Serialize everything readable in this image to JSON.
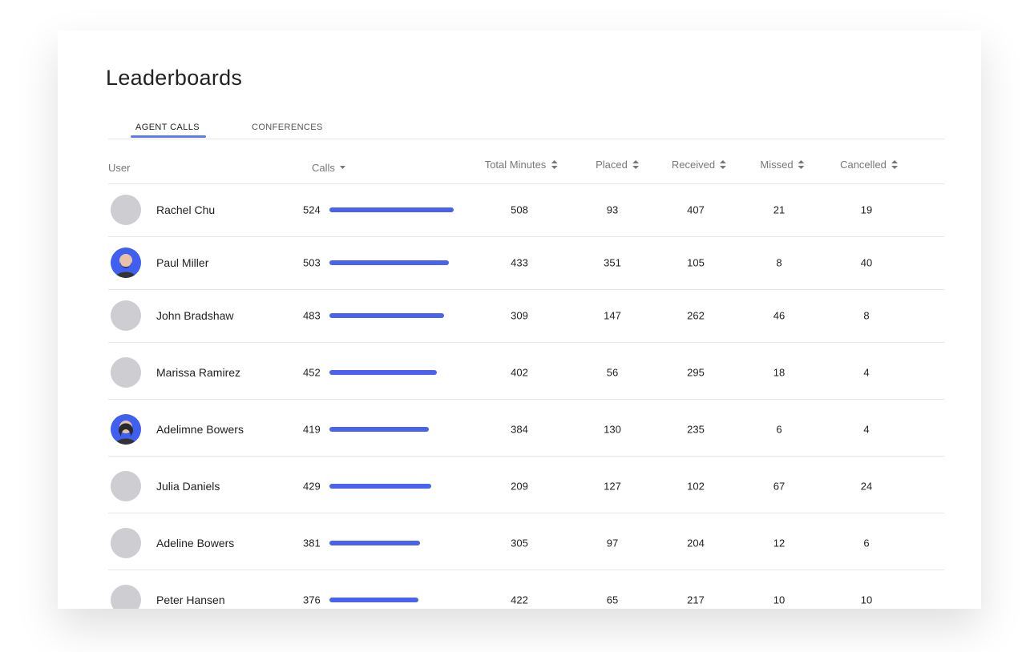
{
  "title": "Leaderboards",
  "tabs": [
    "AGENT CALLS",
    "CONFERENCES"
  ],
  "table": {
    "columns": [
      "User",
      "Calls",
      "Total Minutes",
      "Placed",
      "Received",
      "Missed",
      "Cancelled"
    ],
    "rows": [
      [
        "Rachel Chu",
        524,
        508,
        93,
        407,
        21,
        19
      ],
      [
        "Paul Miller",
        503,
        433,
        351,
        105,
        8,
        40
      ],
      [
        "John Bradshaw",
        483,
        309,
        147,
        262,
        46,
        8
      ],
      [
        "Marissa Ramirez",
        452,
        402,
        56,
        295,
        18,
        4
      ],
      [
        "Adelimne Bowers",
        419,
        384,
        130,
        235,
        6,
        4
      ],
      [
        "Julia Daniels",
        429,
        209,
        127,
        102,
        67,
        24
      ],
      [
        "Adeline Bowers",
        381,
        305,
        97,
        204,
        12,
        6
      ],
      [
        "Peter Hansen",
        376,
        422,
        65,
        217,
        10,
        10
      ]
    ]
  }
}
